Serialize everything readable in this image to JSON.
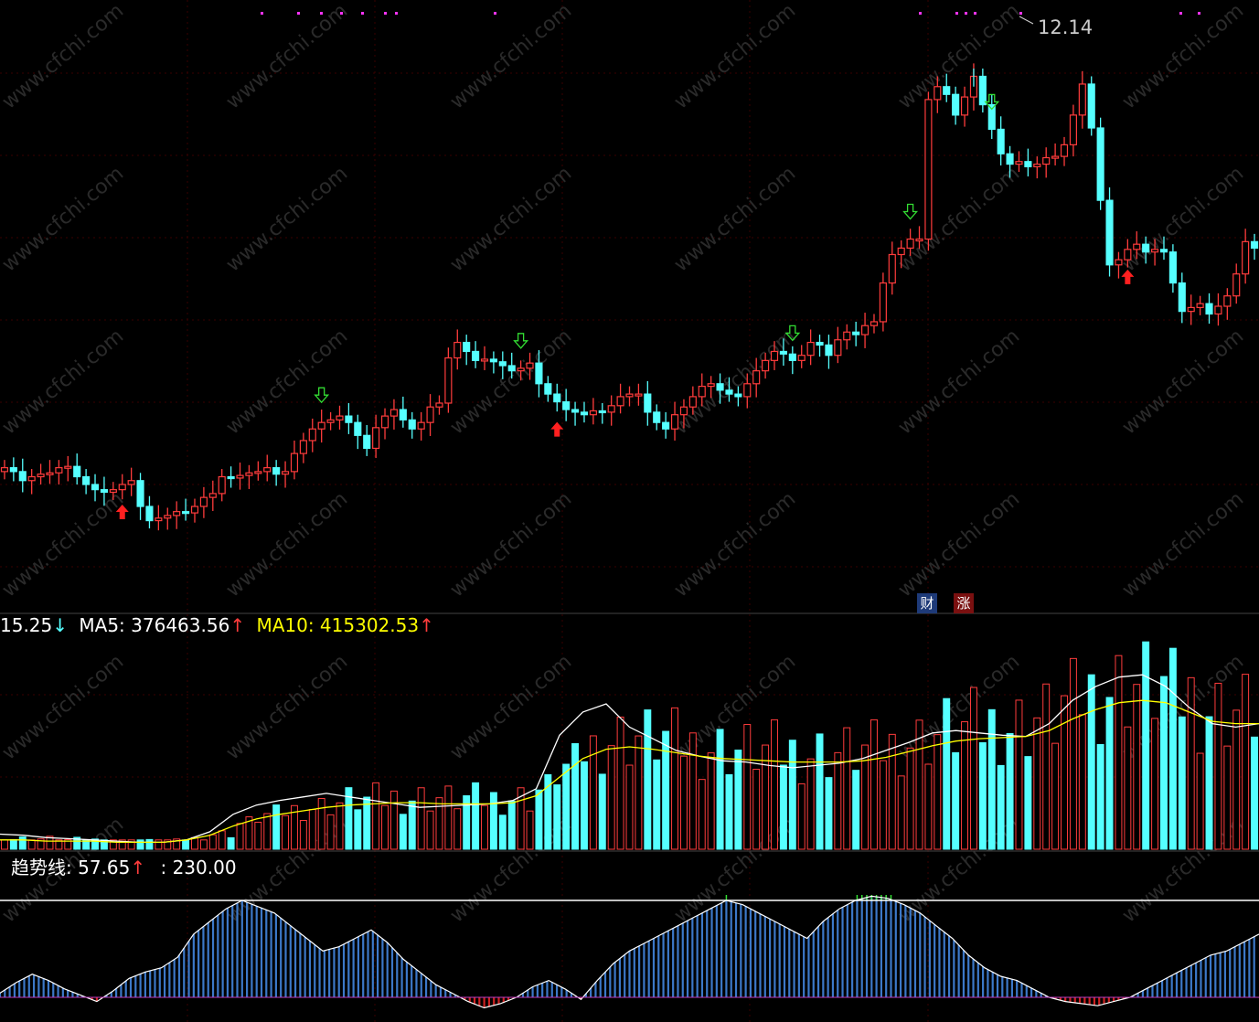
{
  "watermark": "www.cfchi.com",
  "price_panel": {
    "peak_label": "12.14",
    "badges": [
      "财",
      "涨"
    ]
  },
  "volume_panel": {
    "legend_v_value": "15.25",
    "legend_v_arrow": "↓",
    "ma5_label": "MA5: 376463.56",
    "ma5_arrow": "↑",
    "ma10_label": "MA10: 415302.53",
    "ma10_arrow": "↑"
  },
  "trend_panel": {
    "label": "趋势线: 57.65",
    "arrow": "↑",
    "level_label": ": 230.00"
  },
  "colors": {
    "up": "#ff3c3c",
    "down": "#55ffff",
    "ma5": "#ffffff",
    "ma10": "#ffff00",
    "trend_bar": "#3c78c8",
    "grid": "#3a0000"
  },
  "chart_data": [
    {
      "type": "candlestick",
      "title": "",
      "ylim": [
        8.0,
        12.6
      ],
      "peak_value": 12.14,
      "close": [
        9.05,
        9.02,
        8.95,
        8.98,
        9.0,
        9.01,
        9.05,
        9.06,
        8.98,
        8.92,
        8.88,
        8.86,
        8.88,
        8.92,
        8.95,
        8.75,
        8.64,
        8.66,
        8.68,
        8.71,
        8.7,
        8.75,
        8.82,
        8.85,
        8.98,
        8.97,
        8.99,
        9.01,
        9.02,
        9.05,
        9.0,
        9.02,
        9.16,
        9.26,
        9.35,
        9.4,
        9.42,
        9.45,
        9.4,
        9.3,
        9.2,
        9.36,
        9.45,
        9.5,
        9.42,
        9.35,
        9.4,
        9.52,
        9.55,
        9.9,
        10.02,
        9.95,
        9.88,
        9.89,
        9.87,
        9.84,
        9.8,
        9.82,
        9.86,
        9.7,
        9.62,
        9.56,
        9.5,
        9.48,
        9.46,
        9.49,
        9.48,
        9.53,
        9.6,
        9.62,
        9.62,
        9.48,
        9.4,
        9.35,
        9.46,
        9.52,
        9.6,
        9.68,
        9.7,
        9.65,
        9.62,
        9.6,
        9.7,
        9.8,
        9.88,
        9.95,
        9.93,
        9.88,
        9.92,
        10.02,
        10.0,
        9.92,
        10.04,
        10.1,
        10.08,
        10.15,
        10.18,
        10.48,
        10.7,
        10.75,
        10.82,
        10.82,
        11.9,
        12.0,
        11.94,
        11.78,
        11.92,
        12.08,
        11.86,
        11.67,
        11.48,
        11.4,
        11.42,
        11.38,
        11.4,
        11.45,
        11.46,
        11.55,
        11.78,
        12.02,
        11.68,
        11.12,
        10.62,
        10.66,
        10.74,
        10.78,
        10.72,
        10.74,
        10.72,
        10.48,
        10.26,
        10.29,
        10.32,
        10.24,
        10.3,
        10.38,
        10.55,
        10.8,
        10.75
      ]
    },
    {
      "type": "bar",
      "title": "VOL",
      "series": [
        {
          "name": "MA5",
          "values": [
            1.3,
            1.2,
            1.0,
            0.9,
            0.8,
            0.7,
            0.6,
            0.6,
            0.8,
            1.5,
            3.0,
            3.8,
            4.2,
            4.5,
            4.8,
            4.5,
            4.2,
            3.9,
            3.6,
            3.7,
            3.8,
            3.9,
            4.2,
            5.2,
            9.8,
            11.8,
            12.5,
            10.5,
            9.5,
            8.5,
            8.0,
            7.6,
            7.5,
            7.2,
            7.0,
            7.2,
            7.4,
            7.8,
            8.5,
            9.2,
            10.0,
            10.2,
            10.0,
            9.8,
            9.7,
            10.8,
            12.8,
            14.0,
            14.8,
            15.0,
            14.0,
            12.2,
            10.8,
            10.5,
            10.8
          ]
        },
        {
          "name": "MA10",
          "values": [
            0.8,
            0.8,
            0.7,
            0.7,
            0.7,
            0.6,
            0.6,
            0.6,
            0.8,
            1.2,
            2.0,
            2.6,
            3.0,
            3.3,
            3.6,
            3.8,
            3.9,
            4.0,
            4.0,
            3.9,
            3.9,
            3.9,
            4.0,
            4.6,
            6.2,
            7.8,
            8.6,
            8.8,
            8.6,
            8.3,
            8.0,
            7.8,
            7.7,
            7.6,
            7.5,
            7.5,
            7.5,
            7.6,
            7.9,
            8.4,
            8.9,
            9.3,
            9.5,
            9.6,
            9.7,
            10.2,
            11.2,
            12.0,
            12.6,
            12.8,
            12.6,
            11.8,
            11.0,
            10.8,
            10.8
          ]
        }
      ]
    },
    {
      "type": "bar",
      "title": "趋势线",
      "series": [
        {
          "name": "趋势线",
          "values": [
            10,
            35,
            55,
            40,
            20,
            5,
            -10,
            15,
            45,
            60,
            70,
            95,
            150,
            180,
            210,
            230,
            215,
            200,
            170,
            140,
            110,
            120,
            140,
            160,
            130,
            90,
            60,
            30,
            10,
            -10,
            -25,
            -15,
            0,
            25,
            40,
            20,
            -5,
            40,
            80,
            110,
            130,
            150,
            170,
            190,
            210,
            230,
            220,
            200,
            180,
            160,
            140,
            180,
            210,
            230,
            240,
            235,
            220,
            200,
            170,
            140,
            100,
            70,
            50,
            40,
            20,
            0,
            -10,
            -15,
            -20,
            -10,
            0,
            20,
            40,
            60,
            80,
            100,
            110,
            130,
            150
          ]
        }
      ],
      "reference_line": 230.0,
      "current_value": 57.65
    }
  ]
}
